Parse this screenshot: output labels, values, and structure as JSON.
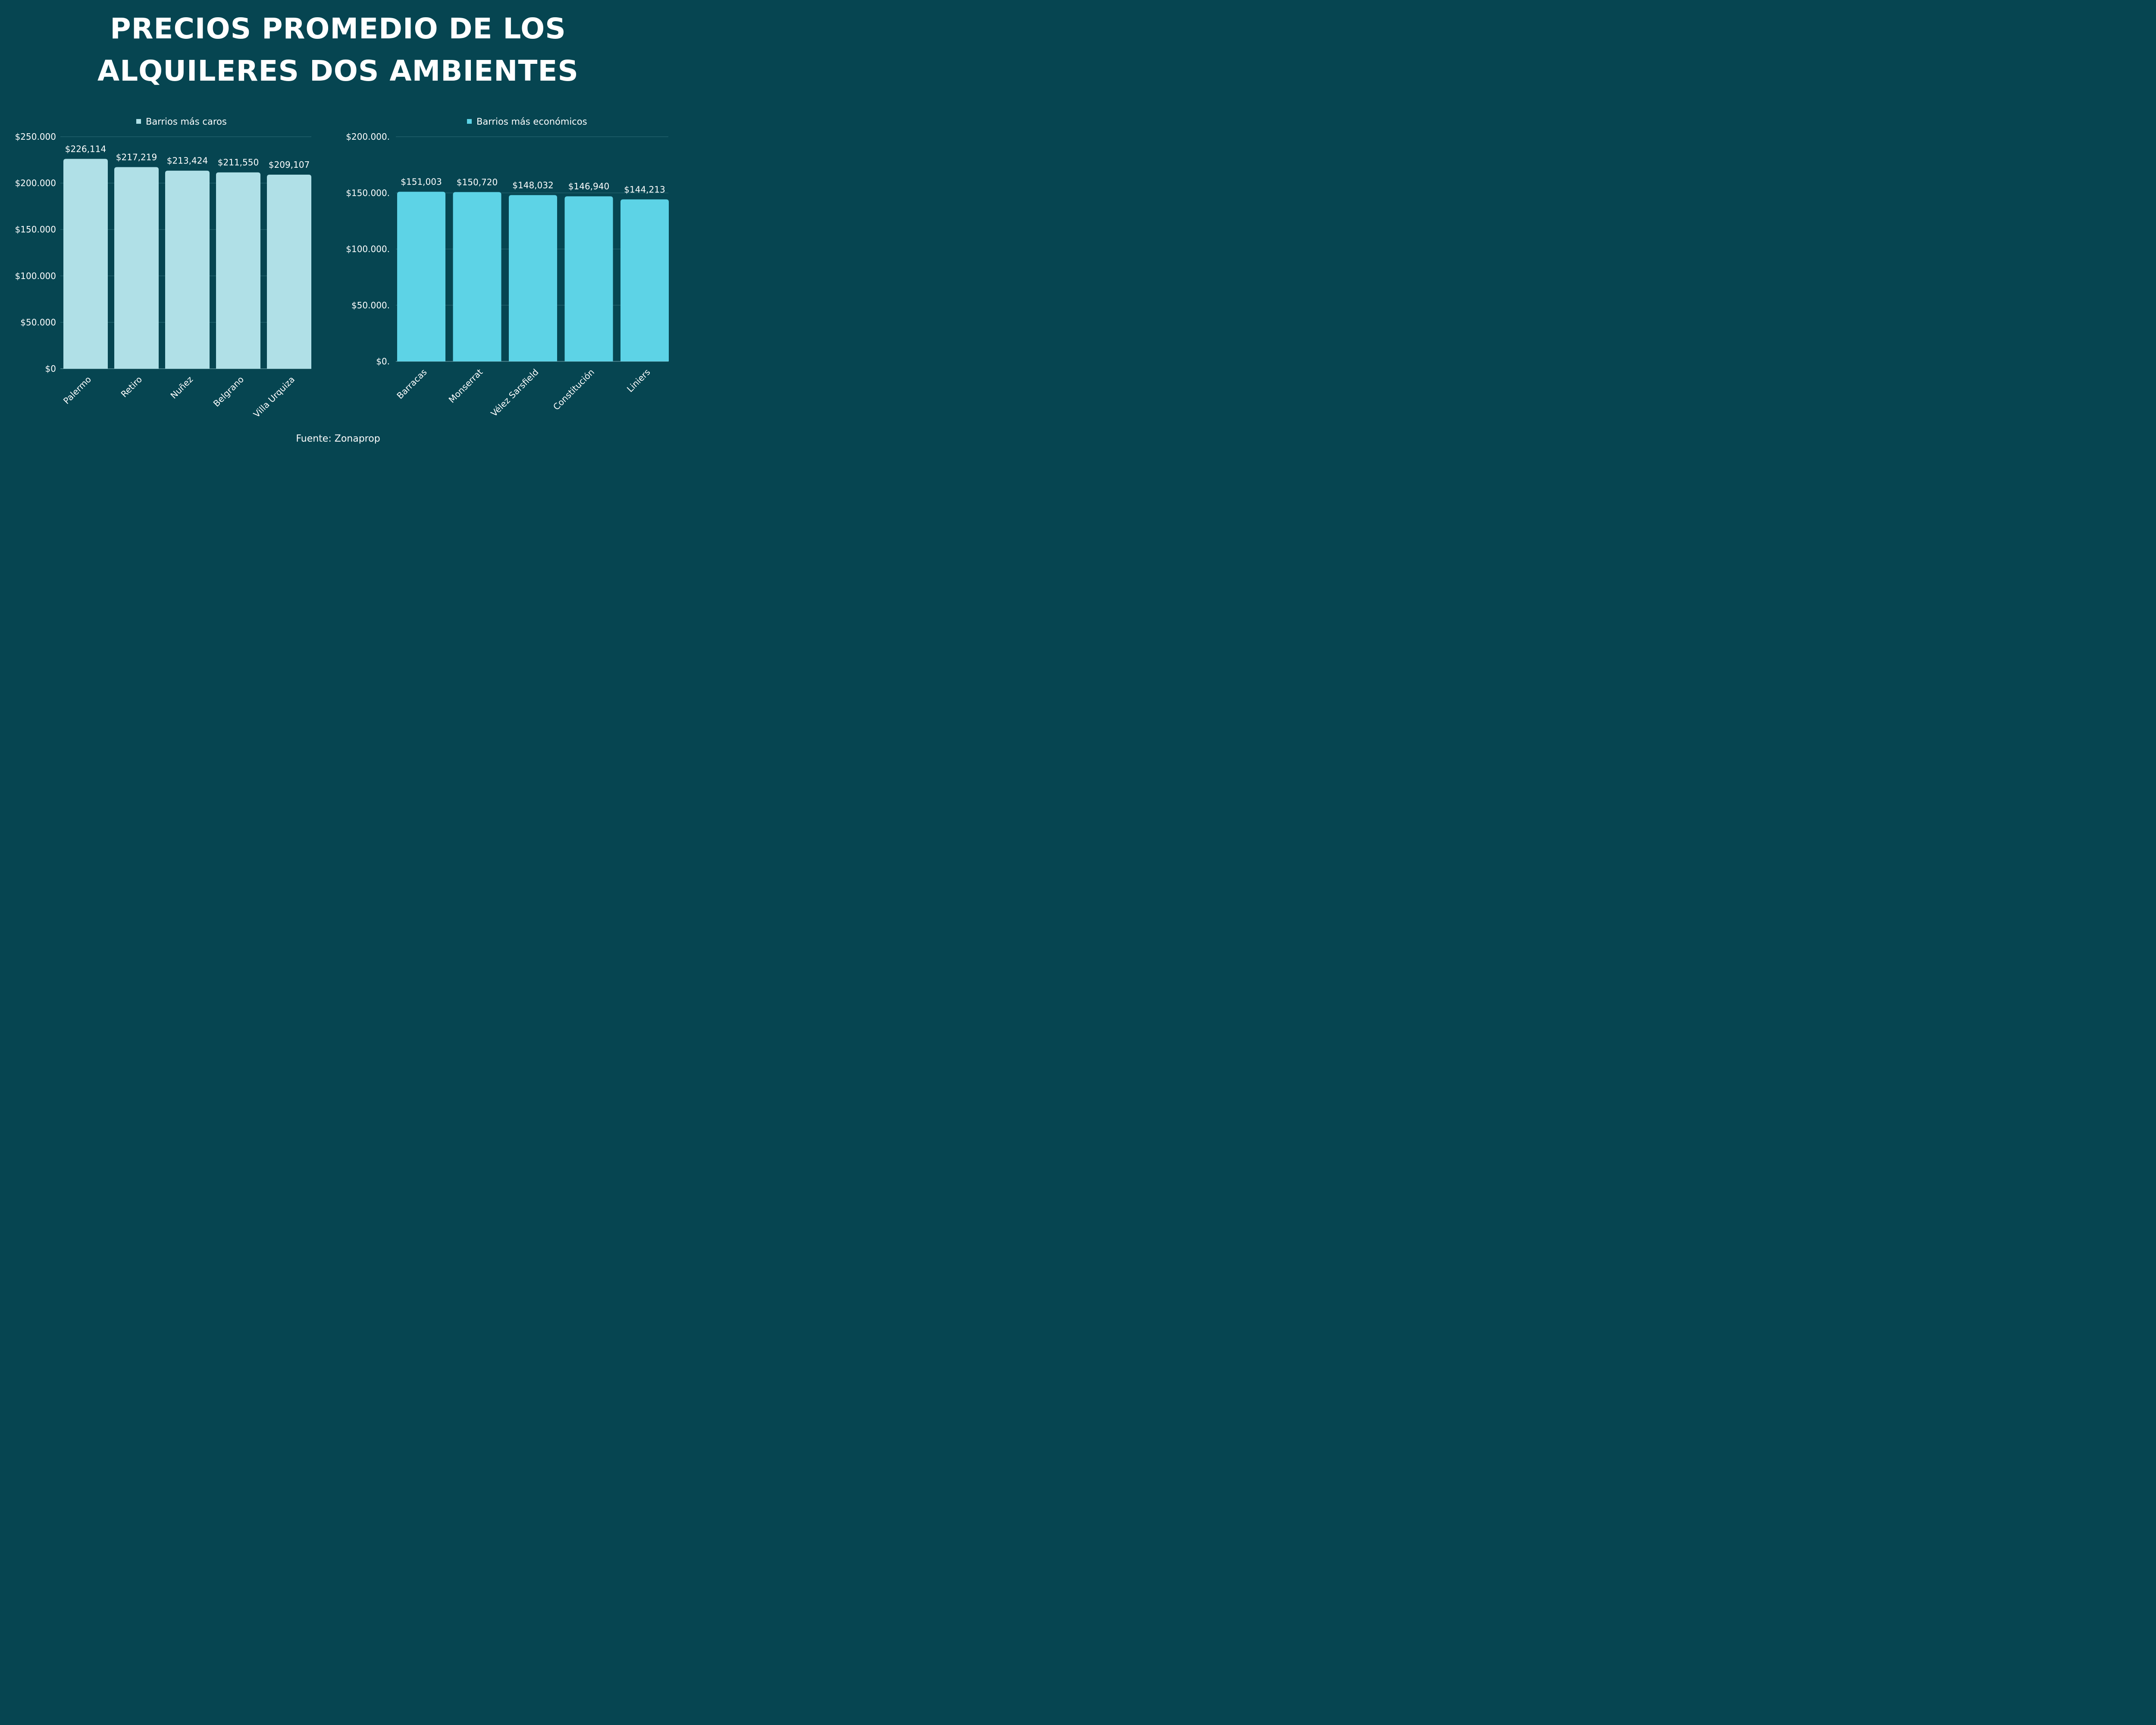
{
  "title": {
    "line1": "PRECIOS PROMEDIO DE LOS",
    "line2": "ALQUILERES DOS AMBIENTES"
  },
  "source": "Fuente: Zonaprop",
  "chart_data": [
    {
      "type": "bar",
      "legend_position": "top-center",
      "grid": true,
      "categories": [
        "Palermo",
        "Retiro",
        "Nuñez",
        "Belgrano",
        "Villa Urquiza"
      ],
      "series": [
        {
          "name": "Barrios más caros",
          "color": "#b0e0e7",
          "values": [
            226114,
            217219,
            213424,
            211550,
            209107
          ],
          "labels": [
            "$226,114",
            "$217,219",
            "$213,424",
            "$211,550",
            "$209,107"
          ]
        }
      ],
      "ylim": [
        0,
        250000
      ],
      "yticks": [
        0,
        50000,
        100000,
        150000,
        200000,
        250000
      ],
      "ytick_labels": [
        "$0",
        "$50.000",
        "$100.000",
        "$150.000",
        "$200.000",
        "$250.000"
      ]
    },
    {
      "type": "bar",
      "legend_position": "top-center",
      "grid": true,
      "categories": [
        "Barracas",
        "Monserrat",
        "Vélez Sarsfield",
        "Constitución",
        "Liniers"
      ],
      "series": [
        {
          "name": "Barrios más económicos",
          "color": "#5dd3e6",
          "values": [
            151003,
            150720,
            148032,
            146940,
            144213
          ],
          "labels": [
            "$151,003",
            "$150,720",
            "$148,032",
            "$146,940",
            "$144,213"
          ]
        }
      ],
      "ylim": [
        0,
        200000
      ],
      "yticks": [
        0,
        50000,
        100000,
        150000,
        200000
      ],
      "ytick_labels": [
        "$0.",
        "$50.000.",
        "$100.000.",
        "$150.000.",
        "$200.000."
      ]
    }
  ]
}
